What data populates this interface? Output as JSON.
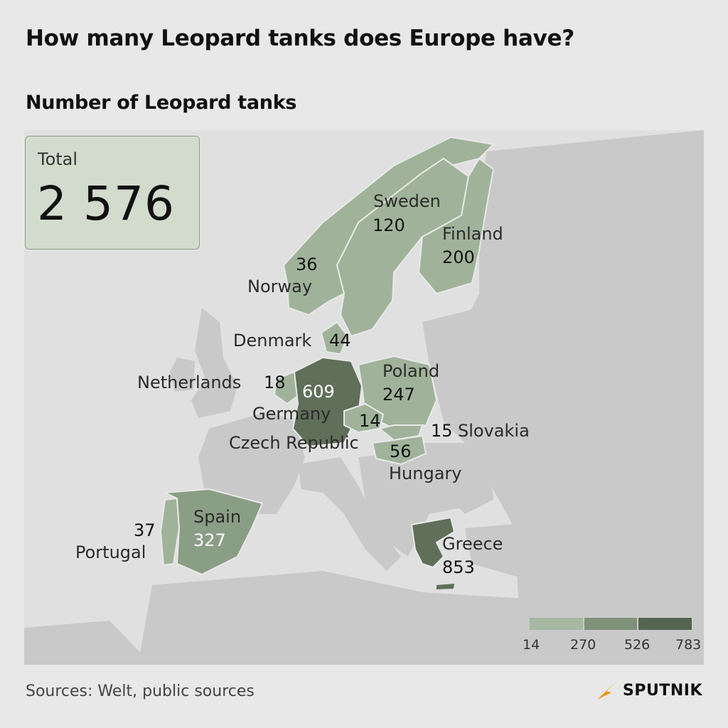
{
  "title": "How many Leopard tanks does Europe have?",
  "subtitle": "Number of Leopard tanks",
  "total": {
    "label": "Total",
    "value": "2 576"
  },
  "countries": [
    {
      "name": "Sweden",
      "value": "120"
    },
    {
      "name": "Finland",
      "value": "200"
    },
    {
      "name": "Norway",
      "value": "36"
    },
    {
      "name": "Denmark",
      "value": "44"
    },
    {
      "name": "Netherlands",
      "value": "18"
    },
    {
      "name": "Germany",
      "value": "609"
    },
    {
      "name": "Poland",
      "value": "247"
    },
    {
      "name": "Czech Republic",
      "value": "14"
    },
    {
      "name": "Slovakia",
      "value": "15"
    },
    {
      "name": "Hungary",
      "value": "56"
    },
    {
      "name": "Spain",
      "value": "327"
    },
    {
      "name": "Portugal",
      "value": "37"
    },
    {
      "name": "Greece",
      "value": "853"
    }
  ],
  "legend": {
    "ticks": [
      "14",
      "270",
      "526",
      "783"
    ],
    "colors": [
      "#a7b8a1",
      "#7e9179",
      "#56654f"
    ]
  },
  "colors": {
    "background": "#e8e8e8",
    "land": "#c9c9c9",
    "sea": "#e0e0e0",
    "low": "#a0b39a",
    "mid": "#8a9e85",
    "high": "#5f6f59"
  },
  "source": "Sources: Welt, public sources",
  "brand": "SPUTNIK",
  "icons": {
    "brand": "sputnik-logo-icon"
  }
}
